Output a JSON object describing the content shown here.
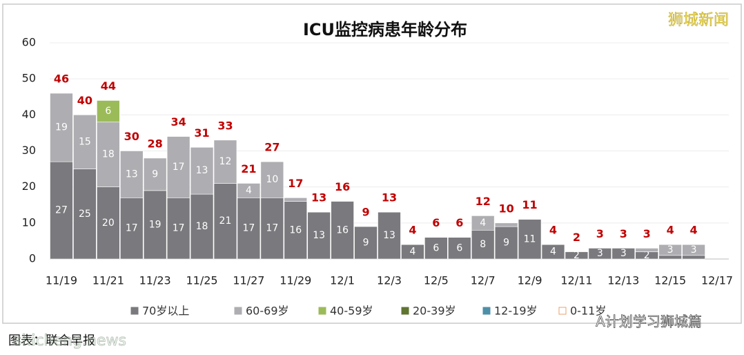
{
  "chart_data": {
    "type": "stacked_bar",
    "title": "ICU监控病患年龄分布",
    "watermark": "狮城新闻",
    "footer": "A计划学习狮城篇",
    "source": "图表：联合早报",
    "site": "shicheng.news",
    "categories": [
      "11/19",
      null,
      "11/21",
      null,
      "11/23",
      null,
      "11/25",
      null,
      "11/27",
      null,
      "11/29",
      null,
      "12/1",
      null,
      "12/3",
      null,
      "12/5",
      null,
      "12/7",
      null,
      "12/9",
      null,
      "12/11",
      null,
      "12/13",
      null,
      "12/15",
      null,
      "12/17"
    ],
    "series": [
      {
        "name": "70岁以上",
        "color": "#7a797d",
        "values": [
          27,
          25,
          20,
          17,
          19,
          17,
          18,
          21,
          17,
          17,
          16,
          13,
          16,
          9,
          13,
          4,
          6,
          6,
          8,
          9,
          11,
          4,
          2,
          3,
          3,
          2,
          1,
          1,
          null
        ]
      },
      {
        "name": "60-69岁",
        "color": "#aeadb1",
        "values": [
          19,
          15,
          18,
          13,
          9,
          17,
          13,
          12,
          4,
          10,
          1,
          0,
          0,
          0,
          0,
          0,
          0,
          0,
          4,
          1,
          0,
          0,
          0,
          0,
          0,
          1,
          3,
          3,
          null
        ]
      },
      {
        "name": "40-59岁",
        "color": "#9bbb59",
        "values": [
          0,
          0,
          6,
          0,
          0,
          0,
          0,
          0,
          0,
          0,
          0,
          0,
          0,
          0,
          0,
          0,
          0,
          0,
          0,
          0,
          0,
          0,
          0,
          0,
          0,
          0,
          0,
          0,
          null
        ]
      },
      {
        "name": "20-39岁",
        "color": "#5f7530",
        "values": [
          0,
          0,
          0,
          0,
          0,
          0,
          0,
          0,
          0,
          0,
          0,
          0,
          0,
          0,
          0,
          0,
          0,
          0,
          0,
          0,
          0,
          0,
          0,
          0,
          0,
          0,
          0,
          0,
          null
        ]
      },
      {
        "name": "12-19岁",
        "color": "#4e8fa8",
        "values": [
          0,
          0,
          0,
          0,
          0,
          0,
          0,
          0,
          0,
          0,
          0,
          0,
          0,
          0,
          0,
          0,
          0,
          0,
          0,
          0,
          0,
          0,
          0,
          0,
          0,
          0,
          0,
          0,
          null
        ]
      },
      {
        "name": "0-11岁",
        "color": "#e8a06c",
        "values": [
          0,
          0,
          0,
          0,
          0,
          0,
          0,
          0,
          0,
          0,
          0,
          0,
          0,
          0,
          0,
          0,
          0,
          0,
          0,
          0,
          0,
          0,
          0,
          0,
          0,
          0,
          0,
          0,
          null
        ]
      }
    ],
    "totals": [
      46,
      40,
      44,
      30,
      28,
      34,
      31,
      33,
      21,
      27,
      17,
      13,
      16,
      9,
      13,
      4,
      6,
      6,
      12,
      10,
      11,
      4,
      2,
      3,
      3,
      3,
      4,
      4,
      null
    ],
    "total_color": "#c00000",
    "ylim": [
      0,
      60
    ],
    "yticks": [
      0,
      10,
      20,
      30,
      40,
      50,
      60
    ],
    "grid": true
  }
}
